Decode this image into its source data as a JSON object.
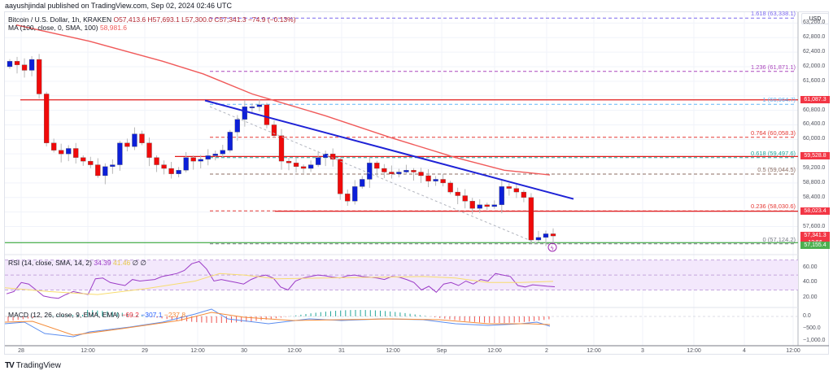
{
  "header": {
    "published": "aayushjindal published on TradingView.com, Sep 02, 2024 02:46 UTC"
  },
  "legend": {
    "symbol": "Bitcoin / U.S. Dollar, 1h, KRAKEN",
    "open": "O57,413.6",
    "high": "H57,693.1",
    "low": "L57,300.0",
    "close": "C57,341.3",
    "change": "−74.9 (−0.13%)",
    "ma_label": "MA (100, close, 0, SMA, 100)",
    "ma_value": "58,981.6",
    "rsi_label": "RSI (14, close, SMA, 14, 2)",
    "rsi_value": "34.39",
    "rsi_ma_value": "41.46",
    "rsi_extra": "∅ ∅",
    "macd_label": "MACD (12, 26, close, 9, EMA, EMA)",
    "macd_hist": "−69.2",
    "macd_line": "−307.1",
    "macd_signal": "−237.8"
  },
  "price_scale": {
    "currency": "USD",
    "ticks": [
      "63,200.0",
      "62,800.0",
      "62,400.0",
      "62,000.0",
      "61,600.0",
      "60,800.0",
      "60,400.0",
      "60,000.0",
      "59,200.0",
      "58,800.0",
      "58,400.0",
      "57,600.0"
    ],
    "tags": [
      {
        "label": "61,087.3",
        "color": "#f23645"
      },
      {
        "label": "59,528.8",
        "color": "#f23645"
      },
      {
        "label": "58,023.4",
        "color": "#f23645"
      },
      {
        "label": "57,341.3",
        "sub": "13:56",
        "color": "#f23645"
      },
      {
        "label": "57,155.4",
        "color": "#4caf50"
      }
    ]
  },
  "rsi_scale": {
    "ticks": [
      "60.00",
      "40.00",
      "20.00"
    ]
  },
  "macd_scale": {
    "ticks": [
      "0.0",
      "−500.0",
      "−1,000.0"
    ]
  },
  "time_axis": {
    "ticks": [
      "28",
      "12:00",
      "29",
      "12:00",
      "30",
      "12:00",
      "31",
      "12:00",
      "Sep",
      "12:00",
      "2",
      "12:00",
      "3",
      "12:00",
      "4",
      "12:00"
    ]
  },
  "fib_levels": [
    {
      "label": "1.618 (63,338.1)",
      "color": "#7b68ee"
    },
    {
      "label": "1.236 (61,871.1)",
      "color": "#ab47bc"
    },
    {
      "label": "1 (60,964.7)",
      "color": "#64b5f6"
    },
    {
      "label": "0.764 (60,058.3)",
      "color": "#e53935"
    },
    {
      "label": "0.618 (59,497.6)",
      "color": "#26a69a"
    },
    {
      "label": "0.5 (59,044.5)",
      "color": "#8d6e63"
    },
    {
      "label": "0.236 (58,030.6)",
      "color": "#e53935"
    },
    {
      "label": "0 (57,124.2)",
      "color": "#787b86"
    }
  ],
  "footer": {
    "brand": "TradingView",
    "logo": "TV"
  },
  "colors": {
    "up": "#0c1fd8",
    "down": "#f00a0a",
    "ma": "#f05a5a",
    "trendline": "#1e22d6",
    "support": "#4caf50",
    "resistance": "#e31b1b",
    "rsi": "#9c3cc7",
    "rsi_ma": "#f7dc6f",
    "macd": "#5b8def",
    "signal": "#f48c3a"
  },
  "chart_data": {
    "type": "candlestick",
    "title": "Bitcoin / U.S. Dollar, 1h, KRAKEN",
    "xlabel": "",
    "ylabel": "USD",
    "ylim": [
      56800,
      63500
    ],
    "x_ticks": [
      "28",
      "12:00",
      "29",
      "12:00",
      "30",
      "12:00",
      "31",
      "12:00",
      "Sep",
      "12:00",
      "2",
      "12:00",
      "3",
      "12:00",
      "4",
      "12:00"
    ],
    "ohlc_last": {
      "open": 57413.6,
      "high": 57693.1,
      "low": 57300.0,
      "close": 57341.3,
      "change": -74.9,
      "change_pct": -0.13
    },
    "approx_closes": [
      62150,
      62050,
      61900,
      62200,
      61250,
      59900,
      59700,
      59600,
      59750,
      59500,
      59400,
      59300,
      59000,
      59250,
      59300,
      59900,
      59800,
      60150,
      59900,
      59500,
      59300,
      59200,
      59050,
      59150,
      59500,
      59400,
      59450,
      59550,
      59600,
      59700,
      60200,
      60550,
      60900,
      60900,
      60950,
      60400,
      60100,
      59400,
      59350,
      59250,
      59200,
      59300,
      59500,
      59600,
      59450,
      58500,
      58300,
      58700,
      58900,
      59350,
      59200,
      59100,
      59050,
      59100,
      59150,
      59100,
      59000,
      58850,
      58900,
      58800,
      58550,
      58450,
      58300,
      58100,
      58200,
      58150,
      58200,
      58700,
      58650,
      58550,
      58400,
      57230,
      57300,
      57400,
      57341
    ],
    "indicators": {
      "ma100": {
        "label": "MA (100, close, 0, SMA, 100)",
        "last": 58981.6
      },
      "rsi": {
        "label": "RSI (14, close, SMA, 14, 2)",
        "value": 34.39,
        "ma": 41.46,
        "range": [
          0,
          100
        ],
        "bands": [
          30,
          70
        ]
      },
      "macd": {
        "label": "MACD (12, 26, close, 9, EMA, EMA)",
        "histogram": -69.2,
        "macd": -307.1,
        "signal": -237.8
      }
    },
    "horizontal_levels": [
      {
        "price": 61087.3,
        "color": "red",
        "type": "resistance"
      },
      {
        "price": 59528.8,
        "color": "red",
        "type": "resistance"
      },
      {
        "price": 58023.4,
        "color": "red",
        "type": "resistance"
      },
      {
        "price": 57155.4,
        "color": "green",
        "type": "support"
      }
    ],
    "fibonacci": [
      {
        "ratio": 1.618,
        "price": 63338.1
      },
      {
        "ratio": 1.236,
        "price": 61871.1
      },
      {
        "ratio": 1,
        "price": 60964.7
      },
      {
        "ratio": 0.764,
        "price": 60058.3
      },
      {
        "ratio": 0.618,
        "price": 59497.6
      },
      {
        "ratio": 0.5,
        "price": 59044.5
      },
      {
        "ratio": 0.236,
        "price": 58030.6
      },
      {
        "ratio": 0,
        "price": 57124.2
      }
    ],
    "trendline": {
      "description": "bearish trend line from ~61,050 (29 Aug 12:00) to ~58,350 (2 Sep 12:00)",
      "color": "blue"
    }
  }
}
